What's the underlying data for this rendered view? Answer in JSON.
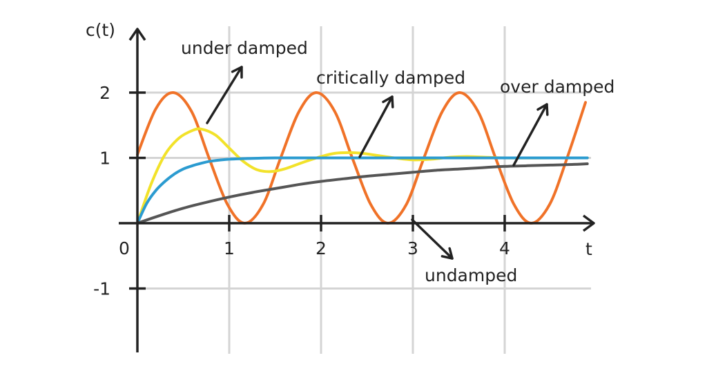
{
  "chart_data": {
    "type": "line",
    "ylabel": "c(t)",
    "xlabel": "t",
    "xlim": [
      0,
      4.9
    ],
    "ylim": [
      -2,
      2.9
    ],
    "xticks": [
      {
        "v": 0,
        "label": "0"
      },
      {
        "v": 1,
        "label": "1"
      },
      {
        "v": 2,
        "label": "2"
      },
      {
        "v": 3,
        "label": "3"
      },
      {
        "v": 4,
        "label": "4"
      }
    ],
    "yticks": [
      {
        "v": 1,
        "label": "1"
      },
      {
        "v": 2,
        "label": "2"
      },
      {
        "v": -1,
        "label": "-1"
      }
    ],
    "grid": true,
    "series": [
      {
        "name": "undamped",
        "color": "#f07228",
        "x": [
          0,
          0.2,
          0.39,
          0.59,
          0.78,
          0.98,
          1.17,
          1.37,
          1.56,
          1.76,
          1.95,
          2.15,
          2.34,
          2.54,
          2.73,
          2.93,
          3.12,
          3.32,
          3.51,
          3.71,
          3.9,
          4.1,
          4.29,
          4.49,
          4.68,
          4.88
        ],
        "y": [
          1.05,
          1.75,
          2.0,
          1.71,
          1.0,
          0.29,
          0.0,
          0.29,
          1.0,
          1.71,
          2.0,
          1.71,
          1.0,
          0.29,
          0.0,
          0.29,
          1.0,
          1.71,
          2.0,
          1.71,
          1.0,
          0.29,
          0.0,
          0.29,
          1.0,
          1.85
        ]
      },
      {
        "name": "under damped",
        "color": "#f2e22a",
        "x": [
          0,
          0.15,
          0.3,
          0.45,
          0.6,
          0.7,
          0.85,
          1.0,
          1.15,
          1.3,
          1.45,
          1.6,
          1.8,
          2.0,
          2.15,
          2.3,
          2.45,
          2.6,
          2.8,
          3.0,
          3.2,
          3.4,
          3.6,
          4.0,
          4.5,
          4.9
        ],
        "y": [
          0,
          0.6,
          1.05,
          1.3,
          1.42,
          1.44,
          1.35,
          1.15,
          0.95,
          0.82,
          0.79,
          0.83,
          0.93,
          1.02,
          1.07,
          1.08,
          1.07,
          1.04,
          1.0,
          0.97,
          0.98,
          1.01,
          1.02,
          1.0,
          1.0,
          1.0
        ]
      },
      {
        "name": "critically damped",
        "color": "#2b9bd0",
        "x": [
          0,
          0.1,
          0.2,
          0.3,
          0.4,
          0.5,
          0.6,
          0.7,
          0.8,
          1.0,
          1.2,
          1.5,
          2.0,
          2.5,
          3.0,
          3.5,
          4.0,
          4.5,
          4.9
        ],
        "y": [
          0,
          0.3,
          0.5,
          0.64,
          0.75,
          0.83,
          0.88,
          0.92,
          0.95,
          0.98,
          0.99,
          1.0,
          1.0,
          1.0,
          1.0,
          1.0,
          1.0,
          1.0,
          1.0
        ]
      },
      {
        "name": "over damped",
        "color": "#555555",
        "x": [
          0,
          0.25,
          0.5,
          0.75,
          1.0,
          1.25,
          1.5,
          1.75,
          2.0,
          2.25,
          2.5,
          2.75,
          3.0,
          3.25,
          3.5,
          3.75,
          4.0,
          4.25,
          4.5,
          4.75,
          4.9
        ],
        "y": [
          0,
          0.12,
          0.23,
          0.32,
          0.4,
          0.47,
          0.53,
          0.59,
          0.64,
          0.68,
          0.72,
          0.75,
          0.78,
          0.81,
          0.83,
          0.85,
          0.87,
          0.88,
          0.89,
          0.9,
          0.91
        ]
      }
    ],
    "annotations": [
      {
        "text": "under damped",
        "series": "under damped"
      },
      {
        "text": "critically damped",
        "series": "critically damped"
      },
      {
        "text": "over damped",
        "series": "over damped"
      },
      {
        "text": "undamped",
        "series": "undamped"
      }
    ]
  }
}
